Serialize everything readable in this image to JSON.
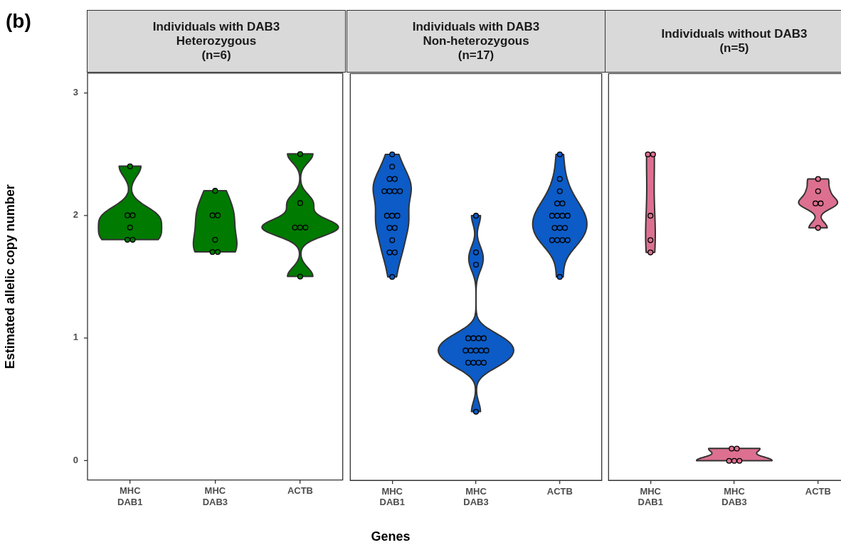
{
  "chart_data": [
    {
      "type": "scatter",
      "title": "Individuals with DAB3\nHeterozygous\n(n=6)",
      "ylabel": "Estimated allelic copy number",
      "annotations": [
        "(b)"
      ],
      "categories": [
        "MHC DAB1",
        "MHC DAB3",
        "ACTB"
      ],
      "series": [
        {
          "color": "#007a00",
          "x": [
            "MHC DAB1",
            "MHC DAB1",
            "MHC DAB1",
            "MHC DAB1",
            "MHC DAB1",
            "MHC DAB1",
            "MHC DAB3",
            "MHC DAB3",
            "MHC DAB3",
            "MHC DAB3",
            "MHC DAB3",
            "MHC DAB3",
            "ACTB",
            "ACTB",
            "ACTB",
            "ACTB",
            "ACTB",
            "ACTB"
          ],
          "values": [
            2.4,
            2.0,
            2.0,
            1.9,
            1.8,
            1.8,
            2.2,
            2.0,
            2.0,
            1.8,
            1.7,
            1.7,
            2.5,
            2.1,
            1.9,
            1.9,
            1.9,
            1.5
          ]
        }
      ],
      "ylim": [
        -0.16,
        3.16
      ],
      "yticks": [
        0,
        1,
        2,
        3
      ],
      "grid": false,
      "marker": "circle"
    },
    {
      "type": "scatter",
      "title": "Individuals with DAB3\nNon-heterozygous\n(n=17)",
      "xlabel": "Genes",
      "categories": [
        "MHC DAB1",
        "MHC DAB3",
        "ACTB"
      ],
      "series": [
        {
          "color": "#0c5bc6",
          "x": [
            "MHC DAB1",
            "MHC DAB1",
            "MHC DAB1",
            "MHC DAB1",
            "MHC DAB1",
            "MHC DAB1",
            "MHC DAB1",
            "MHC DAB1",
            "MHC DAB1",
            "MHC DAB1",
            "MHC DAB1",
            "MHC DAB1",
            "MHC DAB1",
            "MHC DAB1",
            "MHC DAB1",
            "MHC DAB1",
            "MHC DAB1",
            "MHC DAB3",
            "MHC DAB3",
            "MHC DAB3",
            "MHC DAB3",
            "MHC DAB3",
            "MHC DAB3",
            "MHC DAB3",
            "MHC DAB3",
            "MHC DAB3",
            "MHC DAB3",
            "MHC DAB3",
            "MHC DAB3",
            "MHC DAB3",
            "MHC DAB3",
            "MHC DAB3",
            "MHC DAB3",
            "MHC DAB3",
            "ACTB",
            "ACTB",
            "ACTB",
            "ACTB",
            "ACTB",
            "ACTB",
            "ACTB",
            "ACTB",
            "ACTB",
            "ACTB",
            "ACTB",
            "ACTB",
            "ACTB",
            "ACTB",
            "ACTB",
            "ACTB",
            "ACTB"
          ],
          "values": [
            2.5,
            2.4,
            2.3,
            2.3,
            2.2,
            2.2,
            2.2,
            2.2,
            2.0,
            2.0,
            2.0,
            1.9,
            1.9,
            1.8,
            1.7,
            1.7,
            1.5,
            2.0,
            1.7,
            1.6,
            1.0,
            1.0,
            1.0,
            1.0,
            0.9,
            0.9,
            0.9,
            0.9,
            0.9,
            0.8,
            0.8,
            0.8,
            0.8,
            0.4,
            2.5,
            2.3,
            2.2,
            2.1,
            2.1,
            2.0,
            2.0,
            2.0,
            2.0,
            1.9,
            1.9,
            1.9,
            1.8,
            1.8,
            1.8,
            1.8,
            1.5
          ]
        }
      ],
      "ylim": [
        -0.16,
        3.16
      ],
      "yticks": [
        0,
        1,
        2,
        3
      ],
      "grid": false,
      "marker": "circle",
      "tick_labels": "x"
    },
    {
      "type": "scatter",
      "title": "Individuals without DAB3\n(n=5)",
      "categories": [
        "MHC DAB1",
        "MHC DAB3",
        "ACTB"
      ],
      "series": [
        {
          "color": "#dd7090",
          "x": [
            "MHC DAB1",
            "MHC DAB1",
            "MHC DAB1",
            "MHC DAB1",
            "MHC DAB1",
            "MHC DAB3",
            "MHC DAB3",
            "MHC DAB3",
            "MHC DAB3",
            "MHC DAB3",
            "ACTB",
            "ACTB",
            "ACTB",
            "ACTB",
            "ACTB"
          ],
          "values": [
            2.5,
            2.5,
            2.0,
            1.8,
            1.7,
            0.1,
            0.1,
            0,
            0,
            0,
            2.3,
            2.2,
            2.1,
            2.1,
            1.9
          ]
        }
      ],
      "ylim": [
        -0.16,
        3.16
      ],
      "yticks": [
        0,
        1,
        2,
        3
      ],
      "grid": false,
      "marker": "circle",
      "tick_labels": "x"
    }
  ]
}
